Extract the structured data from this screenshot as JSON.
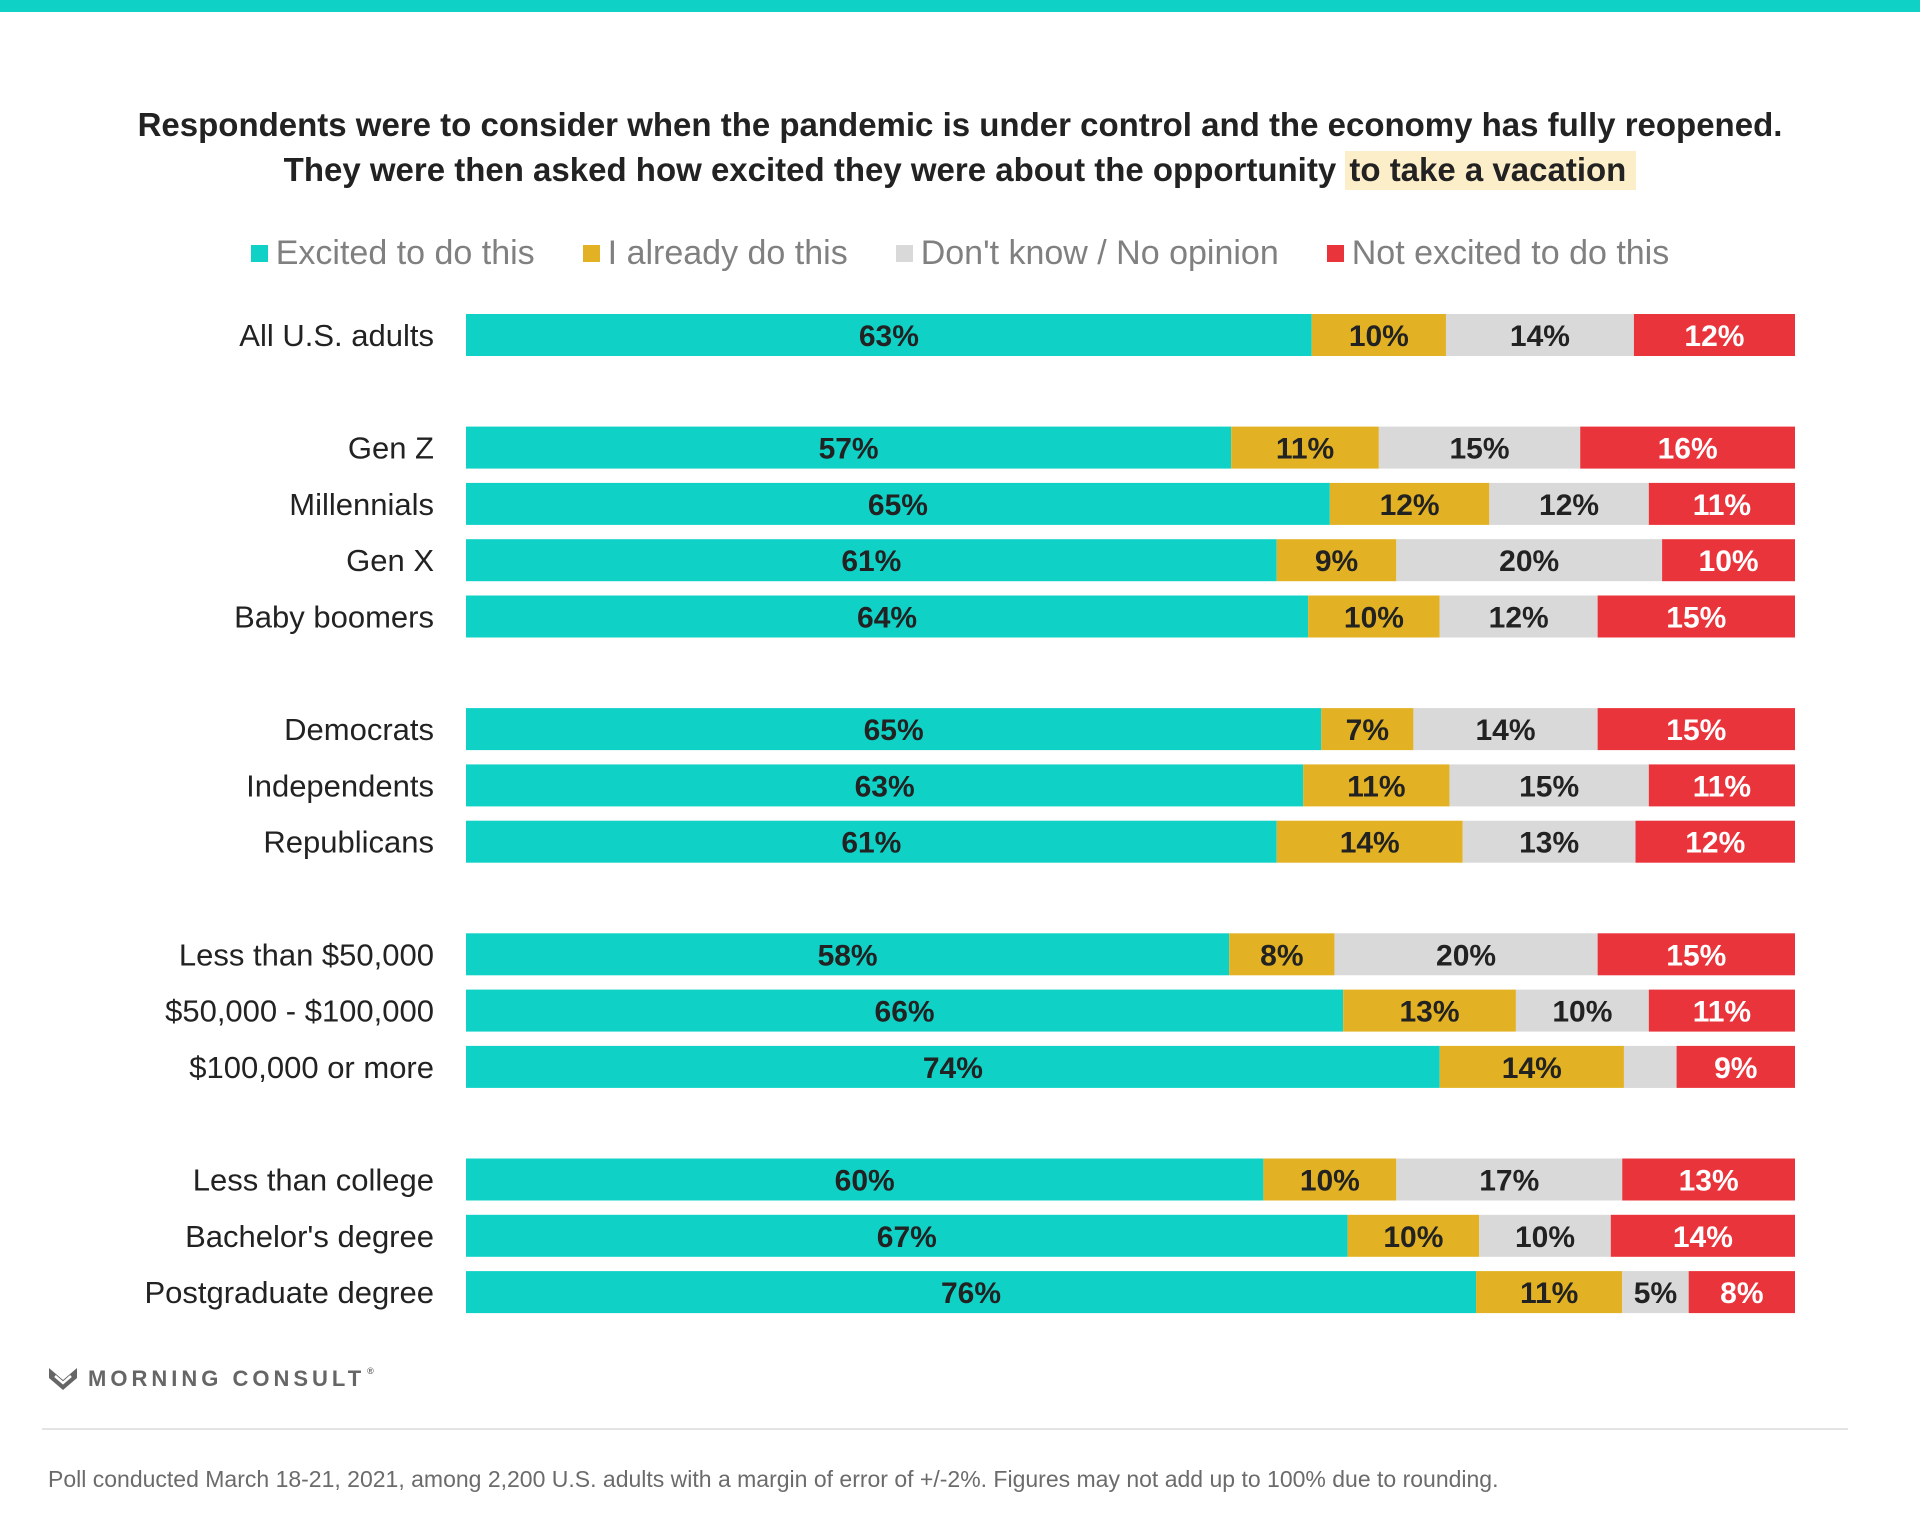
{
  "title": {
    "line1": "Respondents were to consider when the pandemic is under control and the economy has fully reopened.",
    "line2_prefix": "They were then asked how excited they were about the opportunity ",
    "line2_highlight": "to take a vacation"
  },
  "colors": {
    "excited": "#10d1c6",
    "already": "#e2b224",
    "dont_know": "#d9d9d9",
    "not_excited": "#ea343b",
    "label_dark": "#222222",
    "label_light": "#ffffff",
    "highlight": "#fbeec8"
  },
  "logo": {
    "icon": "morning-consult-m-icon",
    "text": "MORNING CONSULT",
    "tm": "®"
  },
  "footnote": "Poll conducted March 18-21, 2021, among 2,200 U.S. adults with a margin of error of +/-2%. Figures may not add up to 100% due to rounding.",
  "chart_data": {
    "type": "bar",
    "orientation": "horizontal",
    "stacked": true,
    "legend_position": "top",
    "legend": [
      "Excited to do this",
      "I already do this",
      "Don't know / No opinion",
      "Not excited to do this"
    ],
    "categories": [
      "All U.S. adults",
      "Gen Z",
      "Millennials",
      "Gen X",
      "Baby boomers",
      "Democrats",
      "Independents",
      "Republicans",
      "Less than $50,000",
      "$50,000 - $100,000",
      "$100,000 or more",
      "Less than college",
      "Bachelor's degree",
      "Postgraduate degree"
    ],
    "groups": [
      [
        0
      ],
      [
        1,
        2,
        3,
        4
      ],
      [
        5,
        6,
        7
      ],
      [
        8,
        9,
        10
      ],
      [
        11,
        12,
        13
      ]
    ],
    "series": [
      {
        "name": "Excited to do this",
        "color": "#10d1c6",
        "values": [
          63,
          57,
          65,
          61,
          64,
          65,
          63,
          61,
          58,
          66,
          74,
          60,
          67,
          76
        ]
      },
      {
        "name": "I already do this",
        "color": "#e2b224",
        "values": [
          10,
          11,
          12,
          9,
          10,
          7,
          11,
          14,
          8,
          13,
          14,
          10,
          10,
          11
        ]
      },
      {
        "name": "Don't know / No opinion",
        "color": "#d9d9d9",
        "values": [
          14,
          15,
          12,
          20,
          12,
          14,
          15,
          13,
          20,
          10,
          4,
          17,
          10,
          5
        ]
      },
      {
        "name": "Not excited to do this",
        "color": "#ea343b",
        "values": [
          12,
          16,
          11,
          10,
          15,
          15,
          11,
          12,
          15,
          11,
          9,
          13,
          14,
          8
        ]
      }
    ],
    "labels": [
      [
        "63%",
        "57%",
        "65%",
        "61%",
        "64%",
        "65%",
        "63%",
        "61%",
        "58%",
        "66%",
        "74%",
        "60%",
        "67%",
        "76%"
      ],
      [
        "10%",
        "11%",
        "12%",
        "9%",
        "10%",
        "7%",
        "11%",
        "14%",
        "8%",
        "13%",
        "14%",
        "10%",
        "10%",
        "11%"
      ],
      [
        "14%",
        "15%",
        "12%",
        "20%",
        "12%",
        "14%",
        "15%",
        "13%",
        "20%",
        "10%",
        "",
        "17%",
        "10%",
        "5%"
      ],
      [
        "12%",
        "16%",
        "11%",
        "10%",
        "15%",
        "15%",
        "11%",
        "12%",
        "15%",
        "11%",
        "9%",
        "13%",
        "14%",
        "8%"
      ]
    ],
    "label_colors": [
      "#222222",
      "#222222",
      "#222222",
      "#ffffff"
    ],
    "xlim": [
      0,
      100
    ],
    "xlabel": "",
    "ylabel": "",
    "grid": false
  }
}
